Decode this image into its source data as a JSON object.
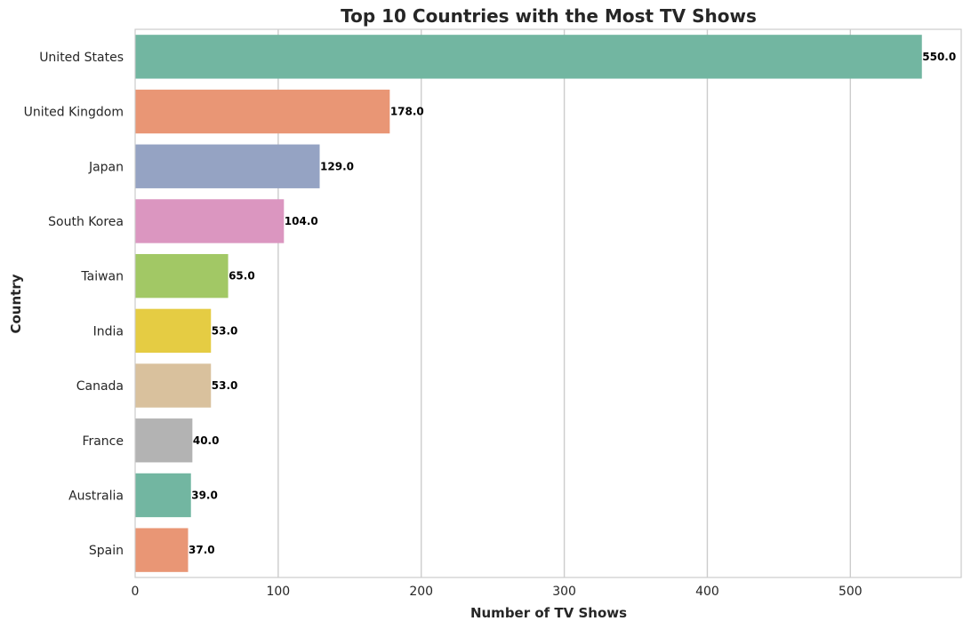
{
  "chart_data": {
    "type": "bar",
    "orientation": "horizontal",
    "title": "Top 10 Countries with the Most TV Shows",
    "xlabel": "Number of TV Shows",
    "ylabel": "Country",
    "categories": [
      "United States",
      "United Kingdom",
      "Japan",
      "South Korea",
      "Taiwan",
      "India",
      "Canada",
      "France",
      "Australia",
      "Spain"
    ],
    "values": [
      550,
      178,
      129,
      104,
      65,
      53,
      53,
      40,
      39,
      37
    ],
    "data_labels": [
      "550.0",
      "178.0",
      "129.0",
      "104.0",
      "65.0",
      "53.0",
      "53.0",
      "40.0",
      "39.0",
      "37.0"
    ],
    "colors": [
      "#72b6a1",
      "#e99675",
      "#95a3c3",
      "#db96c0",
      "#a2c865",
      "#e5cc43",
      "#d9c19d",
      "#b3b3b3",
      "#72b6a1",
      "#e99675"
    ],
    "xticks": [
      0,
      100,
      200,
      300,
      400,
      500
    ],
    "xlim": [
      0,
      577.5
    ],
    "grid": "vertical",
    "legend": "none"
  }
}
